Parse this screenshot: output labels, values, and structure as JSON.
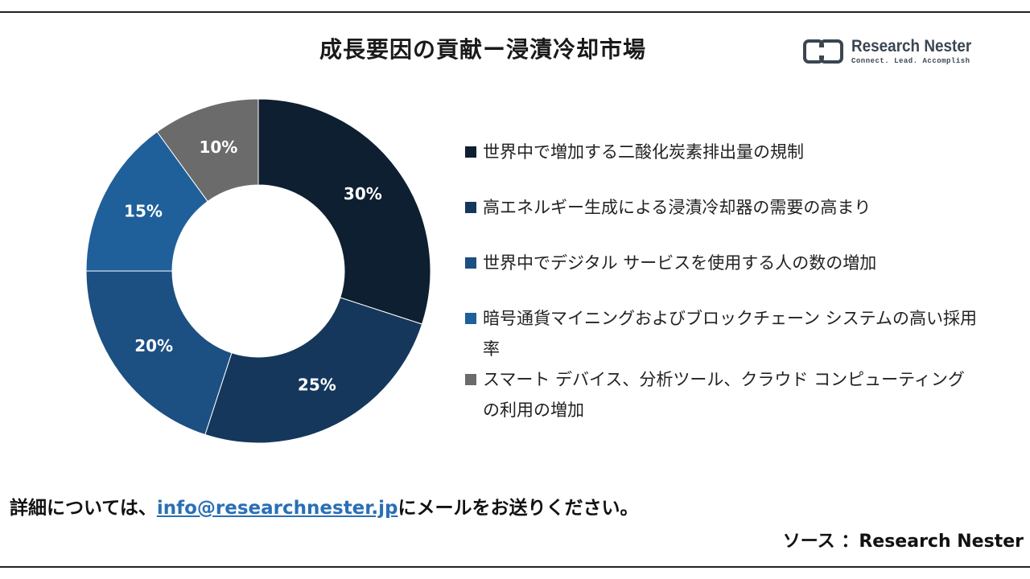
{
  "title": "成長要因の貢献ー浸漬冷却市場",
  "logo": {
    "name": "Research Nester",
    "tagline": "Connect. Lead. Accomplish"
  },
  "chart_data": {
    "type": "pie",
    "donut": true,
    "categories": [
      "世界中で増加する二酸化炭素排出量の規制",
      "高エネルギー生成による浸漬冷却器の需要の高まり",
      "世界中でデジタル サービスを使用する人の数の増加",
      "暗号通貨マイニングおよびブロックチェーン システムの高い採用率",
      "スマート デバイス、分析ツール、クラウド コンピューティングの利用の増加"
    ],
    "values": [
      30,
      25,
      20,
      15,
      10
    ],
    "labels": [
      "30%",
      "25%",
      "20%",
      "15%",
      "10%"
    ],
    "colors": [
      "#0d1f30",
      "#15375c",
      "#1c4f82",
      "#1f5f9a",
      "#6b6b6b"
    ],
    "legend_placement": "right"
  },
  "footer": {
    "prefix": "詳細については、",
    "email": "info@researchnester.jp",
    "suffix": "にメールをお送りください。"
  },
  "source": "ソース ：Research Nester"
}
